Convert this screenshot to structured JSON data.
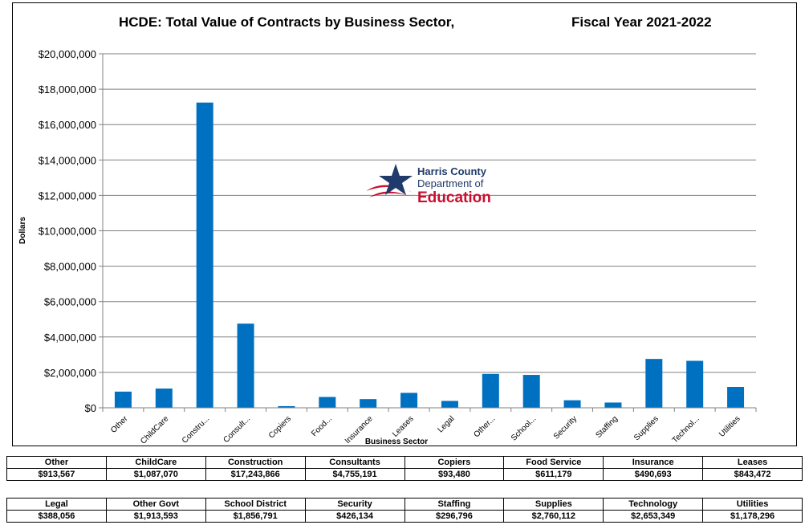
{
  "chart_data": {
    "type": "bar",
    "title": "HCDE: Total Value of Contracts by Business Sector,",
    "subtitle": "Fiscal Year  2021-2022",
    "xlabel": "Business Sector",
    "ylabel": "Dollars",
    "ylim": [
      0,
      20000000
    ],
    "yticks": [
      "$0",
      "$2,000,000",
      "$4,000,000",
      "$6,000,000",
      "$8,000,000",
      "$10,000,000",
      "$12,000,000",
      "$14,000,000",
      "$16,000,000",
      "$18,000,000",
      "$20,000,000"
    ],
    "ytick_values": [
      0,
      2000000,
      4000000,
      6000000,
      8000000,
      10000000,
      12000000,
      14000000,
      16000000,
      18000000,
      20000000
    ],
    "categories": [
      "Other",
      "ChildCare",
      "Constru...",
      "Consult...",
      "Copiers",
      "Food...",
      "Insurance",
      "Leases",
      "Legal",
      "Other...",
      "School...",
      "Security",
      "Staffing",
      "Supplies",
      "Technol...",
      "Utilities"
    ],
    "values": [
      913567,
      1087070,
      17243866,
      4755191,
      93480,
      611179,
      490693,
      843472,
      388056,
      1913593,
      1856791,
      426134,
      296796,
      2760112,
      2653349,
      1178296
    ],
    "grid": true,
    "bar_color": "#0070C0"
  },
  "logo": {
    "line1": "Harris County",
    "line2": "Department of",
    "line3": "Education"
  },
  "table1": {
    "headers": [
      "Other",
      "ChildCare",
      "Construction",
      "Consultants",
      "Copiers",
      "Food Service",
      "Insurance",
      "Leases"
    ],
    "values": [
      "$913,567",
      "$1,087,070",
      "$17,243,866",
      "$4,755,191",
      "$93,480",
      "$611,179",
      "$490,693",
      "$843,472"
    ]
  },
  "table2": {
    "headers": [
      "Legal",
      "Other Govt",
      "School District",
      "Security",
      "Staffing",
      "Supplies",
      "Technology",
      "Utilities"
    ],
    "values": [
      "$388,056",
      "$1,913,593",
      "$1,856,791",
      "$426,134",
      "$296,796",
      "$2,760,112",
      "$2,653,349",
      "$1,178,296"
    ]
  }
}
